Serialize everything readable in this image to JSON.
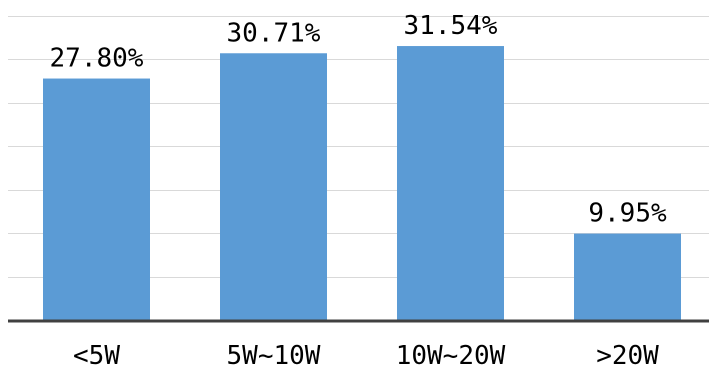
{
  "chart_data": {
    "type": "bar",
    "categories": [
      "<5W",
      "5W~10W",
      "10W~20W",
      ">20W"
    ],
    "values": [
      27.8,
      30.71,
      31.54,
      9.95
    ],
    "data_labels": [
      "27.80%",
      "30.71%",
      "31.54%",
      "9.95%"
    ],
    "ylim": [
      0,
      35
    ],
    "grid": true,
    "legend": "none",
    "colors": {
      "bar": "#5b9bd5",
      "grid": "#d9d9d9",
      "axis": "#404040"
    }
  }
}
